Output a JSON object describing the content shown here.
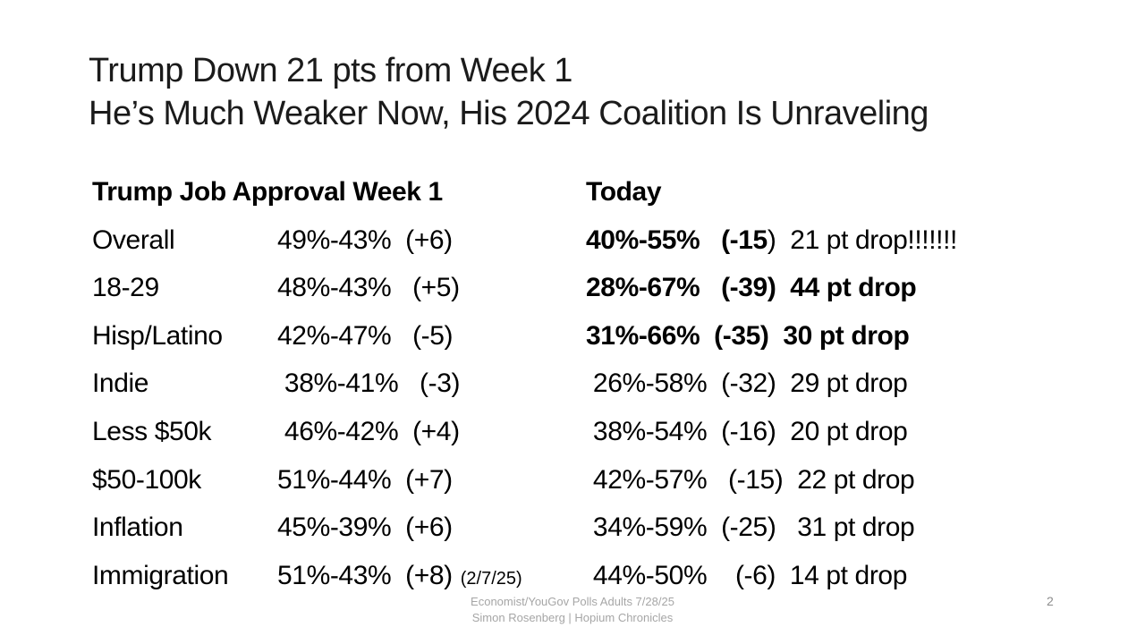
{
  "title": {
    "line1": "Trump Down 21 pts from Week 1",
    "line2": "He’s Much Weaker Now, His 2024 Coalition Is Unraveling"
  },
  "table": {
    "header_week1": "Trump Job Approval Week 1",
    "header_today": "Today",
    "rows": [
      {
        "label": "Overall",
        "week1": "49%-43%  (+6)",
        "note": "",
        "today": "40%-55%   (-15",
        "today_tail": ")",
        "today_bold": true,
        "drop": "  21 pt drop!!!!!!!",
        "drop_bold": false
      },
      {
        "label": "18-29",
        "week1": "48%-43%   (+5)",
        "note": "",
        "today": "28%-67%   (-39)",
        "today_tail": "",
        "today_bold": true,
        "drop": "  44 pt drop",
        "drop_bold": true
      },
      {
        "label": "Hisp/Latino",
        "week1": "42%-47%   (-5)",
        "note": "",
        "today": "31%-66%  (-35)",
        "today_tail": "",
        "today_bold": true,
        "drop": "  30 pt drop",
        "drop_bold": true
      },
      {
        "label": "Indie",
        "week1": " 38%-41%   (-3)",
        "note": "",
        "today": " 26%-58%  (-32)",
        "today_tail": "",
        "today_bold": false,
        "drop": "  29 pt drop",
        "drop_bold": false
      },
      {
        "label": "Less $50k",
        "week1": " 46%-42%  (+4)",
        "note": "",
        "today": " 38%-54%  (-16)",
        "today_tail": "",
        "today_bold": false,
        "drop": "  20 pt drop",
        "drop_bold": false
      },
      {
        "label": "$50-100k",
        "week1": "51%-44%  (+7)",
        "note": "",
        "today": " 42%-57%   (-15)",
        "today_tail": "",
        "today_bold": false,
        "drop": "  22 pt drop",
        "drop_bold": false
      },
      {
        "label": "Inflation",
        "week1": "45%-39%  (+6)",
        "note": "",
        "today": " 34%-59%  (-25)",
        "today_tail": "",
        "today_bold": false,
        "drop": "   31 pt drop",
        "drop_bold": false
      },
      {
        "label": "Immigration",
        "week1": "51%-43%  (+8)",
        "note": "(2/7/25)",
        "today": " 44%-50%    (-6)",
        "today_tail": "",
        "today_bold": false,
        "drop": "  14 pt drop",
        "drop_bold": false
      }
    ]
  },
  "footer": {
    "line1": "Economist/YouGov Polls Adults 7/28/25",
    "line2": "Simon Rosenberg | Hopium Chronicles",
    "page_number": "2"
  },
  "colors": {
    "title": "#1b1b1b",
    "text": "#000000",
    "muted": "#a6a6a6",
    "page": "#8c8c8c"
  }
}
